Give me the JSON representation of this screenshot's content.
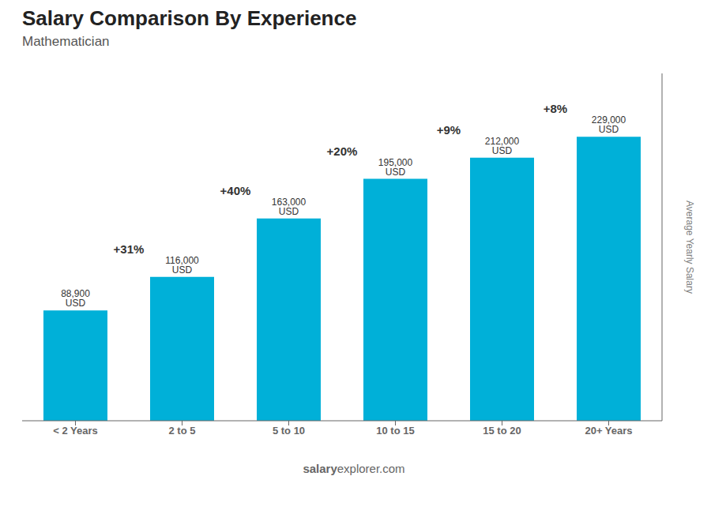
{
  "chart_data": {
    "type": "bar",
    "title": "Salary Comparison By Experience",
    "subtitle": "Mathematician",
    "y_label": "Average Yearly Salary",
    "categories": [
      "< 2 Years",
      "2 to 5",
      "5 to 10",
      "10 to 15",
      "15 to 20",
      "20+ Years"
    ],
    "values": [
      88900,
      116000,
      163000,
      195000,
      212000,
      229000
    ],
    "value_labels": [
      "88,900 USD",
      "116,000 USD",
      "163,000 USD",
      "195,000 USD",
      "212,000 USD",
      "229,000 USD"
    ],
    "data_labels": true,
    "annotations": [
      {
        "text": "+31%",
        "from": "< 2 Years",
        "to": "2 to 5"
      },
      {
        "text": "+40%",
        "from": "2 to 5",
        "to": "5 to 10"
      },
      {
        "text": "+20%",
        "from": "5 to 10",
        "to": "10 to 15"
      },
      {
        "text": "+9%",
        "from": "10 to 15",
        "to": "15 to 20"
      },
      {
        "text": "+8%",
        "from": "15 to 20",
        "to": "20+ Years"
      }
    ],
    "watermark": [
      "salary",
      "explorer.com"
    ],
    "color": "#00b0d8",
    "ylim": [
      0,
      280000
    ],
    "tick_labels": "x",
    "grid": false
  }
}
